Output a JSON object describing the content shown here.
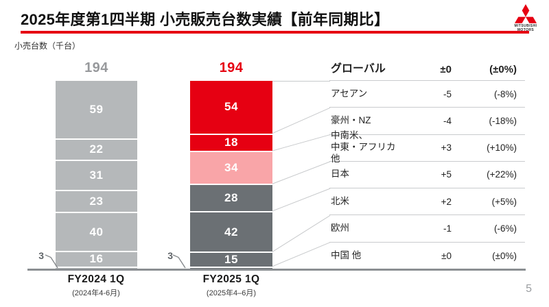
{
  "header": {
    "title": "2025年度第1四半期 小売販売台数実績【前年同期比】",
    "logo_text": "MITSUBISHI\nMOTORS",
    "accent_color": "#e60012"
  },
  "unit_label": "小売台数（千台）",
  "page_number": "5",
  "chart_data": {
    "type": "bar",
    "stacked": true,
    "title": "小売販売台数実績【前年同期比】",
    "unit": "千台",
    "categories": [
      "FY2024 1Q",
      "FY2025 1Q"
    ],
    "category_sublabels": [
      "(2024年4-6月)",
      "(2025年4–6月)"
    ],
    "totals": {
      "fy2024": "194",
      "fy2025": "194"
    },
    "small_segment_callout": "3",
    "summary_row": {
      "region": "グローバル",
      "change": "±0",
      "pct": "(±0%)"
    },
    "regions": [
      {
        "name": "アセアン",
        "fy2024": 59,
        "fy2025": 54,
        "change": "-5",
        "pct": "(-8%)",
        "fy2025_color": "#e60012"
      },
      {
        "name": "豪州・NZ",
        "fy2024": 22,
        "fy2025": 18,
        "change": "-4",
        "pct": "(-18%)",
        "fy2025_color": "#e60012"
      },
      {
        "name": "中南米、\n中東・アフリカ 他",
        "fy2024": 31,
        "fy2025": 34,
        "change": "+3",
        "pct": "(+10%)",
        "fy2025_color": "#f9a5a8"
      },
      {
        "name": "日本",
        "fy2024": 23,
        "fy2025": 28,
        "change": "+5",
        "pct": "(+22%)",
        "fy2025_color": "#6b7074"
      },
      {
        "name": "北米",
        "fy2024": 40,
        "fy2025": 42,
        "change": "+2",
        "pct": "(+5%)",
        "fy2025_color": "#6b7074"
      },
      {
        "name": "欧州",
        "fy2024": 16,
        "fy2025": 15,
        "change": "-1",
        "pct": "(-6%)",
        "fy2025_color": "#6b7074"
      },
      {
        "name": "中国 他",
        "fy2024": 3,
        "fy2025": 3,
        "change": "±0",
        "pct": "(±0%)",
        "fy2025_color": "#6b7074"
      }
    ],
    "colors": {
      "fy2024_segment": "#b5b8ba",
      "fy2024_total_label": "#97999c",
      "fy2025_total_label": "#e60012",
      "baseline": "#8b8f92",
      "connector": "#c7c9cb",
      "callout_line": "#85898c"
    },
    "ylim": [
      0,
      194
    ],
    "legend_position": "right-table"
  }
}
